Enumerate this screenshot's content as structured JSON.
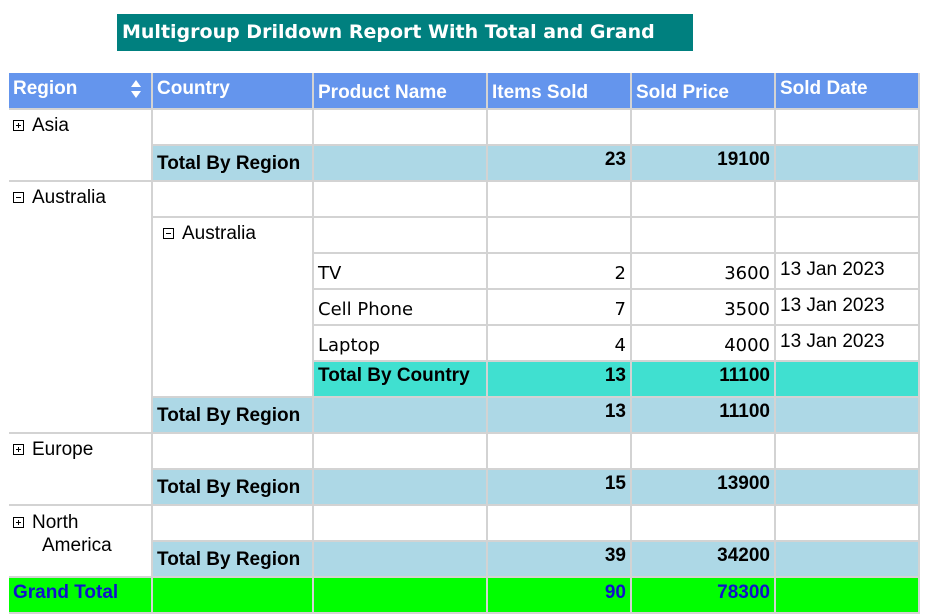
{
  "report": {
    "title": "Multigroup Drildown Report With Total and Grand Total"
  },
  "headers": {
    "region": "Region",
    "country": "Country",
    "product": "Product Name",
    "items_sold": "Items Sold",
    "sold_price": "Sold Price",
    "sold_date": "Sold Date"
  },
  "groups": {
    "asia": {
      "name": "Asia",
      "expanded": false,
      "total_label": "Total By Region",
      "items": "23",
      "price": "19100"
    },
    "australia": {
      "name": "Australia",
      "expanded": true,
      "total_label": "Total By Region",
      "items": "13",
      "price": "11100",
      "country": {
        "name": "Australia",
        "expanded": true,
        "total_label": "Total By Country",
        "items": "13",
        "price": "11100",
        "rows": [
          {
            "product": "TV",
            "items": "2",
            "price": "3600",
            "date": "13 Jan 2023"
          },
          {
            "product": "Cell Phone",
            "items": "7",
            "price": "3500",
            "date": "13 Jan 2023"
          },
          {
            "product": "Laptop",
            "items": "4",
            "price": "4000",
            "date": "13 Jan 2023"
          }
        ]
      }
    },
    "europe": {
      "name": "Europe",
      "expanded": false,
      "total_label": "Total By Region",
      "items": "15",
      "price": "13900"
    },
    "north_america": {
      "name_line1": "North",
      "name_line2": "America",
      "expanded": false,
      "total_label": "Total By Region",
      "items": "39",
      "price": "34200"
    }
  },
  "grand_total": {
    "label": "Grand Total",
    "items": "90",
    "price": "78300"
  },
  "colors": {
    "title_bg": "#00807f",
    "header_bg": "#6495ed",
    "region_total_bg": "#add8e6",
    "country_total_bg": "#40e0d0",
    "grand_total_bg": "#00ff00",
    "grand_total_text": "#1111cc"
  }
}
